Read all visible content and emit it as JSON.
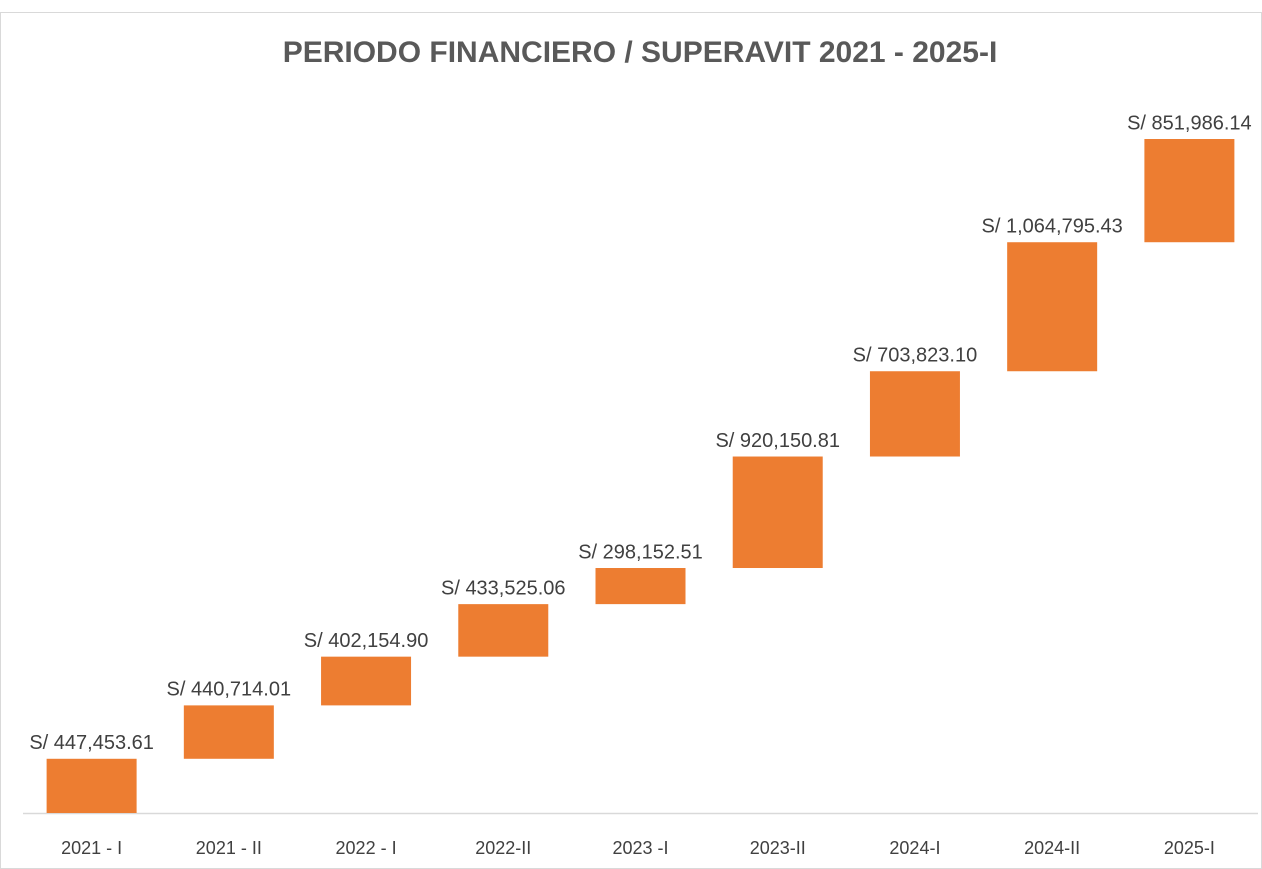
{
  "chart_data": {
    "type": "waterfall",
    "title": "PERIODO FINANCIERO / SUPERAVIT 2021 - 2025-I",
    "categories": [
      "2021 - I",
      "2021 - II",
      "2022 - I",
      "2022-II",
      "2023 -I",
      "2023-II",
      "2024-I",
      "2024-II",
      "2025-I"
    ],
    "values": [
      447453.61,
      440714.01,
      402154.9,
      433525.06,
      298152.51,
      920150.81,
      703823.1,
      1064795.43,
      851986.14
    ],
    "value_labels": [
      "S/ 447,453.61",
      "S/ 440,714.01",
      "S/ 402,154.90",
      "S/ 433,525.06",
      "S/ 298,152.51",
      "S/ 920,150.81",
      "S/ 703,823.10",
      "S/ 1,064,795.43",
      "S/ 851,986.14"
    ],
    "color": "#ed7d31"
  }
}
